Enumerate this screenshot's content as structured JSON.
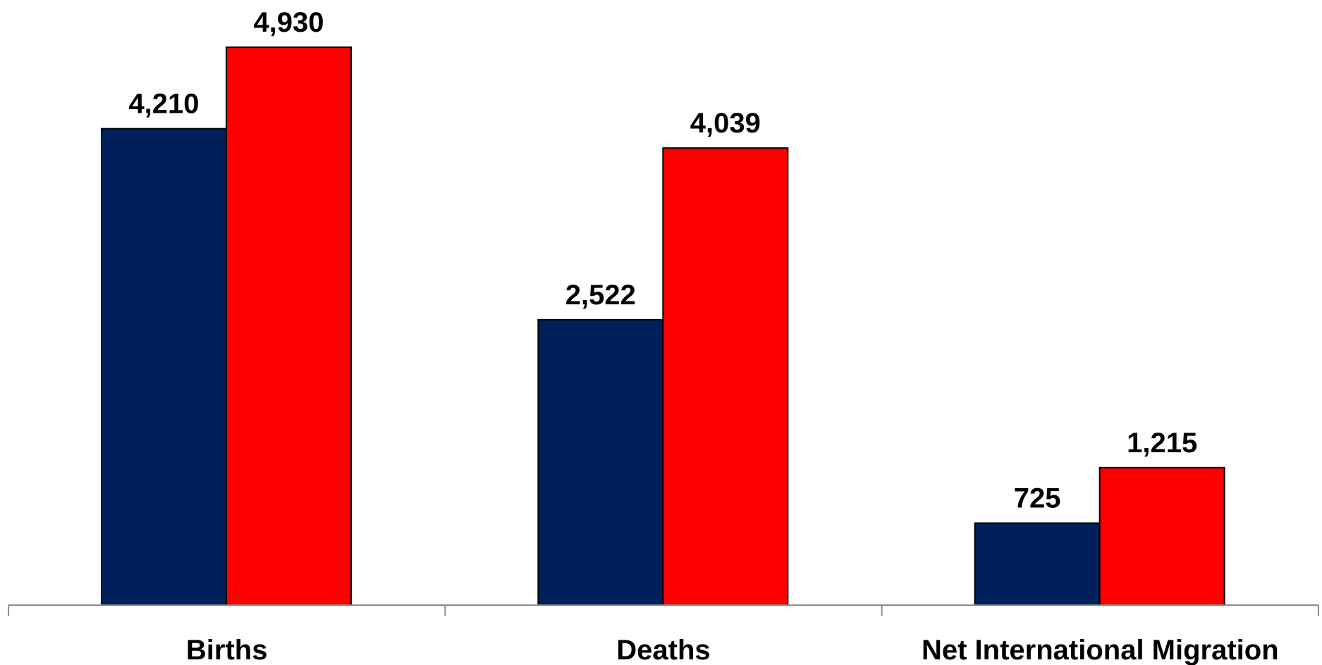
{
  "chart_data": {
    "type": "bar",
    "categories": [
      "Births",
      "Deaths",
      "Net International Migration"
    ],
    "series": [
      {
        "values": [
          4210,
          2522,
          725
        ],
        "value_labels": [
          "4,210",
          "2,522",
          "725"
        ],
        "color": "#00205b"
      },
      {
        "values": [
          4930,
          4039,
          1215
        ],
        "value_labels": [
          "4,930",
          "4,039",
          "1,215"
        ],
        "color": "#ff0000"
      }
    ],
    "ylim": [
      0,
      5000
    ],
    "grid": false,
    "legend": "none"
  }
}
